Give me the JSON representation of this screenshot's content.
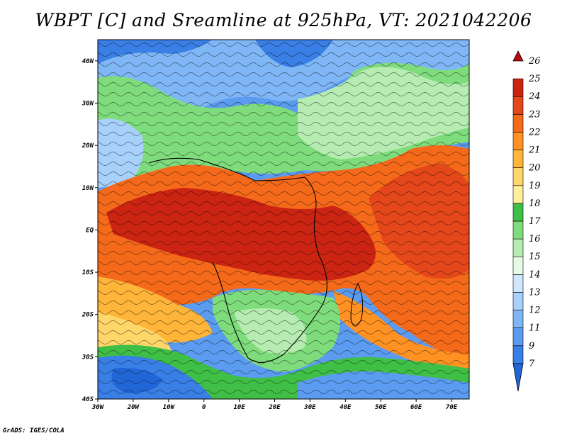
{
  "title": "WBPT [C] and Sreamline at 925hPa, VT: 2021042206",
  "footer": "GrADS: IGES/COLA",
  "map": {
    "lon_ticks": [
      "30W",
      "20W",
      "10W",
      "0",
      "10E",
      "20E",
      "30E",
      "40E",
      "50E",
      "60E",
      "70E"
    ],
    "lat_ticks": [
      "40N",
      "30N",
      "20N",
      "10N",
      "EQ",
      "10S",
      "20S",
      "30S",
      "40S"
    ],
    "lon_range": [
      -30,
      75
    ],
    "lat_range": [
      -40,
      45
    ]
  },
  "colorbar": {
    "labels": [
      "7",
      "9",
      "11",
      "12",
      "13",
      "14",
      "15",
      "16",
      "17",
      "18",
      "19",
      "20",
      "21",
      "22",
      "23",
      "24",
      "25",
      "26"
    ],
    "colors": [
      "#2166d6",
      "#3a7fe6",
      "#5b9bf0",
      "#7fb7f6",
      "#a7d0fb",
      "#cfe6fd",
      "#e6fbe6",
      "#b6ecb2",
      "#7fdc7c",
      "#3fbf45",
      "#ffef9a",
      "#ffd66a",
      "#ffb43a",
      "#ff9222",
      "#f56a1a",
      "#e4471a",
      "#cc2412",
      "#b30f0a"
    ]
  }
}
